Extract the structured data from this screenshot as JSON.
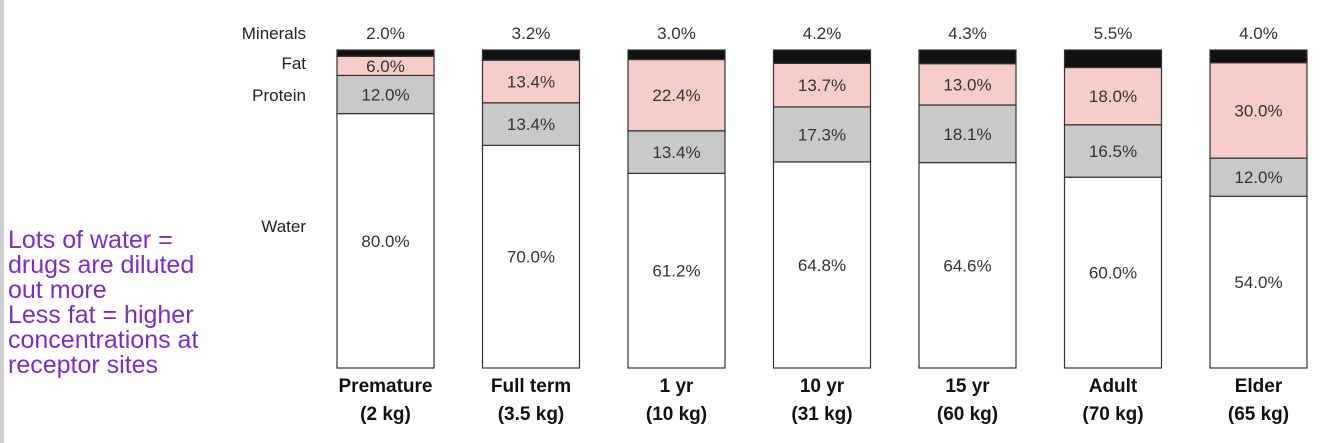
{
  "chart_data": {
    "type": "bar",
    "stacked": true,
    "categories": [
      {
        "name": "Premature",
        "weight": "(2 kg)"
      },
      {
        "name": "Full term",
        "weight": "(3.5 kg)"
      },
      {
        "name": "1 yr",
        "weight": "(10 kg)"
      },
      {
        "name": "10 yr",
        "weight": "(31 kg)"
      },
      {
        "name": "15 yr",
        "weight": "(60 kg)"
      },
      {
        "name": "Adult",
        "weight": "(70 kg)"
      },
      {
        "name": "Elder",
        "weight": "(65 kg)"
      }
    ],
    "series": [
      {
        "name": "Water",
        "color": "#ffffff",
        "values": [
          80.0,
          70.0,
          61.2,
          64.8,
          64.6,
          60.0,
          54.0
        ],
        "labels": [
          "80.0%",
          "70.0%",
          "61.2%",
          "64.8%",
          "64.6%",
          "60.0%",
          "54.0%"
        ]
      },
      {
        "name": "Protein",
        "color": "#c9c9cb",
        "values": [
          12.0,
          13.4,
          13.4,
          17.3,
          18.1,
          16.5,
          12.0
        ],
        "labels": [
          "12.0%",
          "13.4%",
          "13.4%",
          "17.3%",
          "18.1%",
          "16.5%",
          "12.0%"
        ]
      },
      {
        "name": "Fat",
        "color": "#f6cdc8",
        "values": [
          6.0,
          13.4,
          22.4,
          13.7,
          13.0,
          18.0,
          30.0
        ],
        "labels": [
          "6.0%",
          "13.4%",
          "22.4%",
          "13.7%",
          "13.0%",
          "18.0%",
          "30.0%"
        ]
      },
      {
        "name": "Minerals",
        "color": "#111111",
        "values": [
          2.0,
          3.2,
          3.0,
          4.2,
          4.3,
          5.5,
          4.0
        ],
        "labels": [
          "2.0%",
          "3.2%",
          "3.0%",
          "4.2%",
          "4.3%",
          "5.5%",
          "4.0%"
        ]
      }
    ],
    "row_labels": {
      "minerals": "Minerals",
      "fat": "Fat",
      "protein": "Protein",
      "water": "Water"
    },
    "ylim": [
      0,
      100
    ]
  },
  "annotation": {
    "lines": [
      "Lots of water =",
      "drugs are diluted",
      "out more",
      "Less fat = higher",
      "concentrations at",
      "receptor sites"
    ],
    "color": "#7b2fbe"
  }
}
